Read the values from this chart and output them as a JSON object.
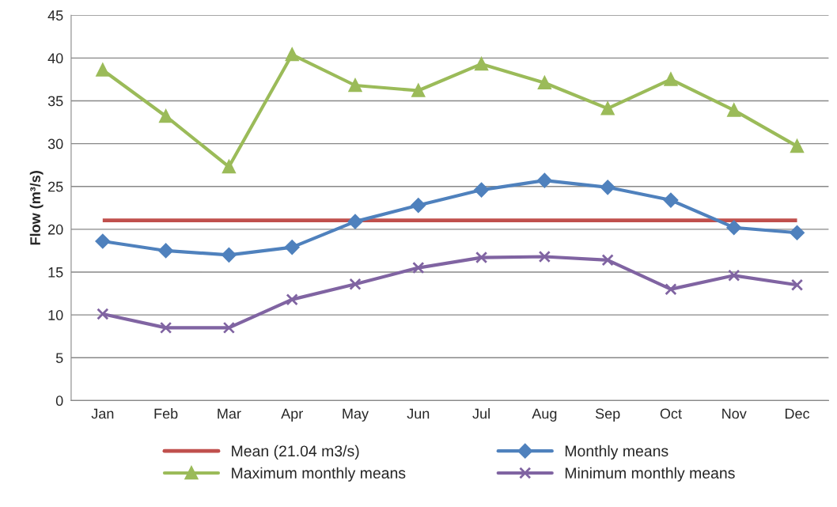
{
  "chart_data": {
    "type": "line",
    "ylabel": "Flow (m³/s)",
    "categories": [
      "Jan",
      "Feb",
      "Mar",
      "Apr",
      "May",
      "Jun",
      "Jul",
      "Aug",
      "Sep",
      "Oct",
      "Nov",
      "Dec"
    ],
    "series": [
      {
        "name": "Monthly means",
        "color": "#4f81bd",
        "marker": "diamond",
        "values": [
          18.6,
          17.5,
          17.0,
          17.9,
          20.9,
          22.8,
          24.6,
          25.7,
          24.9,
          23.4,
          20.2,
          19.6
        ]
      },
      {
        "name": "Maximum monthly means",
        "color": "#9bbb59",
        "marker": "triangle",
        "values": [
          38.6,
          33.2,
          27.3,
          40.4,
          36.8,
          36.2,
          39.3,
          37.1,
          34.1,
          37.5,
          33.9,
          29.7
        ]
      },
      {
        "name": "Minimum monthly means",
        "color": "#8064a2",
        "marker": "cross",
        "values": [
          10.1,
          8.5,
          8.5,
          11.8,
          13.6,
          15.5,
          16.7,
          16.8,
          16.4,
          13.0,
          14.6,
          13.5
        ]
      }
    ],
    "ref_lines": [
      {
        "axis": "y",
        "value": 21.04,
        "label": "Mean (21.04 m3/s)",
        "color": "#c0504d"
      }
    ],
    "ylim": [
      0,
      45
    ],
    "yticks": [
      0,
      5,
      10,
      15,
      20,
      25,
      30,
      35,
      40,
      45
    ],
    "grid": "y",
    "legend": "bottom",
    "line_style": "solid"
  }
}
